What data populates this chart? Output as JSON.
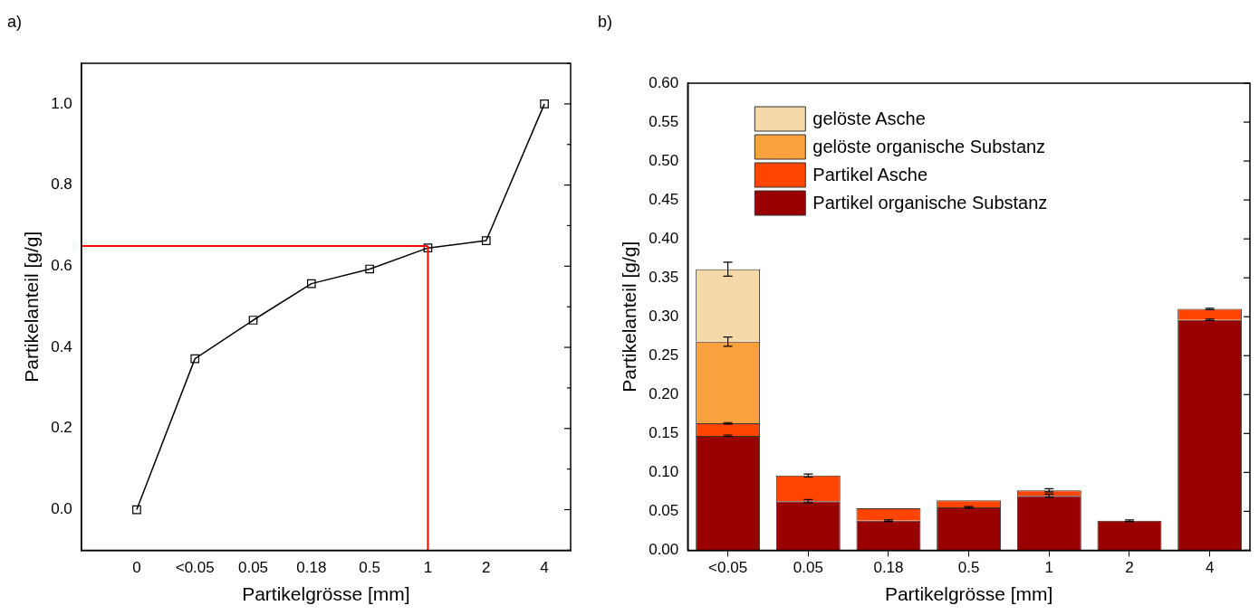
{
  "chart_data": [
    {
      "type": "line",
      "annotations": [
        "a)"
      ],
      "xlabel": "Partikelgrösse [mm]",
      "ylabel": "Partikelanteil [g/g]",
      "categories": [
        "0",
        "<0.05",
        "0.05",
        "0.18",
        "0.5",
        "1",
        "2",
        "4"
      ],
      "series": [
        {
          "color": "#000000",
          "values": [
            0,
            0.372,
            0.467,
            0.557,
            0.593,
            0.645,
            0.663,
            1.0
          ]
        }
      ],
      "marker": "square",
      "line_style": "solid",
      "grid": false,
      "legend": false,
      "ylim": [
        -0.1,
        1.1
      ],
      "yticks": [
        {
          "value": -0.1,
          "label": null
        },
        {
          "value": 0,
          "label": "0.0"
        },
        {
          "value": 0.1,
          "label": null
        },
        {
          "value": 0.2,
          "label": "0.2"
        },
        {
          "value": 0.3,
          "label": null
        },
        {
          "value": 0.4,
          "label": "0.4"
        },
        {
          "value": 0.5,
          "label": null
        },
        {
          "value": 0.6,
          "label": "0.6"
        },
        {
          "value": 0.7,
          "label": null
        },
        {
          "value": 0.8,
          "label": "0.8"
        },
        {
          "value": 0.9,
          "label": null
        },
        {
          "value": 1.0,
          "label": "1.0"
        },
        {
          "value": 1.1,
          "label": null
        }
      ],
      "ref_lines": [
        {
          "axis": "y",
          "value": 0.65,
          "color": "#ff0000"
        },
        {
          "axis": "x",
          "value": "1",
          "color": "#ff0000"
        }
      ]
    },
    {
      "type": "bar",
      "stacked": true,
      "annotations": [
        "b)"
      ],
      "xlabel": "Partikelgrösse [mm]",
      "ylabel": "Partikelanteil [g/g]",
      "categories": [
        "<0.05",
        "0.05",
        "0.18",
        "0.5",
        "1",
        "2",
        "4"
      ],
      "series": [
        {
          "name": "Partikel organische Substanz",
          "color": "#990000",
          "values": [
            0.147,
            0.063,
            0.038,
            0.055,
            0.07,
            0.038,
            0.296
          ],
          "errors": [
            0.001,
            0.002,
            0.001,
            0.001,
            0.002,
            0.001,
            0.001
          ]
        },
        {
          "name": "Partikel Asche",
          "color": "#ff4500",
          "values": [
            0.016,
            0.033,
            0.016,
            0.009,
            0.007,
            null,
            0.014
          ],
          "errors": [
            0.001,
            0.002,
            null,
            null,
            0.002,
            null,
            0.001
          ]
        },
        {
          "name": "gelöste organische Substanz",
          "color": "#f9a03f",
          "values": [
            0.105,
            null,
            null,
            null,
            null,
            null,
            null
          ],
          "errors": [
            0.006,
            null,
            null,
            null,
            null,
            null,
            null
          ]
        },
        {
          "name": "gelöste Asche",
          "color": "#f5d9a8",
          "values": [
            0.093,
            null,
            null,
            null,
            null,
            null,
            null
          ],
          "errors": [
            0.009,
            null,
            null,
            null,
            null,
            null,
            null
          ]
        }
      ],
      "grid": false,
      "legend": "top left",
      "ylim": [
        0,
        0.6
      ],
      "yticks": [
        {
          "value": 0,
          "label": "0.00"
        },
        {
          "value": 0.05,
          "label": "0.05"
        },
        {
          "value": 0.1,
          "label": "0.10"
        },
        {
          "value": 0.15,
          "label": "0.15"
        },
        {
          "value": 0.2,
          "label": "0.20"
        },
        {
          "value": 0.25,
          "label": "0.25"
        },
        {
          "value": 0.3,
          "label": "0.30"
        },
        {
          "value": 0.35,
          "label": "0.35"
        },
        {
          "value": 0.4,
          "label": "0.40"
        },
        {
          "value": 0.45,
          "label": "0.45"
        },
        {
          "value": 0.5,
          "label": "0.50"
        },
        {
          "value": 0.55,
          "label": "0.55"
        },
        {
          "value": 0.6,
          "label": "0.60"
        }
      ]
    }
  ]
}
